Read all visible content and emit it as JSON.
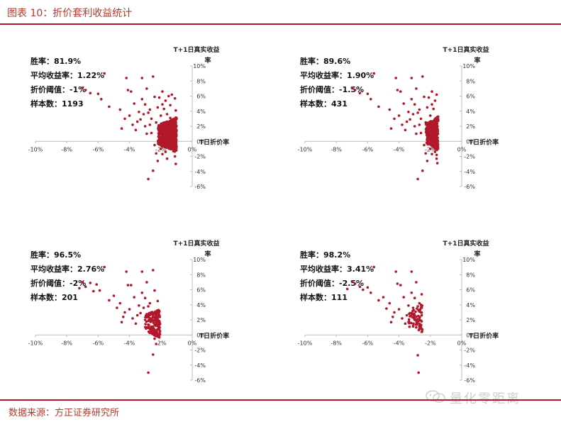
{
  "header": {
    "title": "图表 10：折价套利收益统计"
  },
  "footer": {
    "source": "数据来源：方正证券研究所"
  },
  "watermark": {
    "text": "量化零距离",
    "icon": "wechat-icon"
  },
  "colors": {
    "accent": "#b2182b",
    "point": "#b2182b",
    "axis": "#bbbbbb",
    "text": "#222222"
  },
  "chart_data": [
    {
      "type": "scatter",
      "xlabel": "T日折价率",
      "ylabel": "T+1日真实收益率",
      "x_ticks": [
        "-10%",
        "-8%",
        "-6%",
        "-4%",
        "-2%",
        "0%"
      ],
      "y_ticks": [
        "10%",
        "8%",
        "6%",
        "4%",
        "2%",
        "0%",
        "-2%",
        "-4%",
        "-6%"
      ],
      "xlim": [
        -10,
        0
      ],
      "ylim": [
        -6,
        10
      ],
      "stats": {
        "win_rate": "胜率：81.9%",
        "avg_return": "平均收益率：1.22%",
        "threshold": "折价阈值：-1%",
        "samples": "样本数：1193"
      },
      "threshold": -1,
      "points": [
        [
          -7.0,
          7.1
        ],
        [
          -6.8,
          6.8
        ],
        [
          -6.5,
          6.4
        ],
        [
          -5.6,
          9.0
        ],
        [
          -6.0,
          6.3
        ],
        [
          -5.8,
          5.6
        ],
        [
          -5.3,
          4.6
        ],
        [
          -4.2,
          8.4
        ],
        [
          -4.1,
          6.8
        ],
        [
          -3.9,
          6.6
        ],
        [
          -3.7,
          5.0
        ],
        [
          -4.6,
          4.2
        ],
        [
          -4.3,
          3.0
        ],
        [
          -3.5,
          2.6
        ],
        [
          -3.2,
          8.4
        ],
        [
          -3.2,
          5.6
        ],
        [
          -3.0,
          4.9
        ],
        [
          -2.9,
          7.0
        ],
        [
          -2.5,
          8.6
        ],
        [
          -2.4,
          5.9
        ],
        [
          -2.8,
          3.8
        ],
        [
          -4.5,
          1.7
        ],
        [
          -3.6,
          1.5
        ],
        [
          -3.0,
          2.0
        ],
        [
          -2.7,
          2.2
        ],
        [
          -2.6,
          1.1
        ],
        [
          -2.4,
          -0.5
        ],
        [
          -2.3,
          -1.6
        ],
        [
          -2.2,
          -2.6
        ],
        [
          -2.5,
          -3.9
        ],
        [
          -2.8,
          -5.0
        ],
        [
          -2.0,
          -1.0
        ],
        [
          -1.9,
          -1.7
        ],
        [
          -1.7,
          -1.4
        ],
        [
          -1.6,
          -2.3
        ],
        [
          -1.5,
          -0.2
        ],
        [
          -1.8,
          4.3
        ],
        [
          -1.7,
          5.4
        ],
        [
          -1.5,
          6.0
        ],
        [
          -1.4,
          4.8
        ],
        [
          -1.3,
          6.2
        ],
        [
          -1.2,
          2.8
        ],
        [
          -1.1,
          -2.0
        ],
        [
          -1.05,
          -3.0
        ],
        [
          -1.2,
          -1.3
        ],
        [
          -1.8,
          2.5
        ],
        [
          -2.0,
          3.4
        ],
        [
          -2.2,
          4.5
        ],
        [
          -1.4,
          3.1
        ],
        [
          -1.1,
          5.7
        ],
        [
          -2.6,
          3.0
        ],
        [
          -3.3,
          2.9
        ],
        [
          -3.1,
          3.6
        ],
        [
          -2.7,
          4.2
        ],
        [
          -1.9,
          4.9
        ],
        [
          -1.6,
          1.9
        ],
        [
          -1.4,
          0.6
        ],
        [
          -1.3,
          -0.8
        ],
        [
          -1.2,
          0.4
        ],
        [
          -1.1,
          1.6
        ],
        [
          -1.6,
          3.6
        ],
        [
          -2.1,
          1.2
        ],
        [
          -2.3,
          2.5
        ],
        [
          -2.9,
          1.0
        ],
        [
          -4.0,
          3.4
        ],
        [
          -3.8,
          2.2
        ],
        [
          -3.4,
          3.9
        ],
        [
          -2.1,
          5.8
        ],
        [
          -1.9,
          6.6
        ],
        [
          -1.05,
          4.1
        ]
      ],
      "dense_clusters": [
        {
          "x": [
            -2.2,
            -1.0
          ],
          "y": [
            -1.5,
            3.2
          ],
          "count": 900,
          "seed": 11
        }
      ]
    },
    {
      "type": "scatter",
      "xlabel": "T日折价率",
      "ylabel": "T+1日真实收益率",
      "x_ticks": [
        "-10%",
        "-8%",
        "-6%",
        "-4%",
        "-2%",
        "0%"
      ],
      "y_ticks": [
        "10%",
        "8%",
        "6%",
        "4%",
        "2%",
        "0%",
        "-2%",
        "-4%",
        "-6%"
      ],
      "xlim": [
        -10,
        0
      ],
      "ylim": [
        -6,
        10
      ],
      "stats": {
        "win_rate": "胜率：89.6%",
        "avg_return": "平均收益率：1.90%",
        "threshold": "折价阈值：-1.5%",
        "samples": "样本数：431"
      },
      "threshold": -1.5,
      "points": [
        [
          -7.0,
          7.1
        ],
        [
          -6.8,
          6.8
        ],
        [
          -6.5,
          6.4
        ],
        [
          -5.6,
          9.0
        ],
        [
          -6.0,
          6.3
        ],
        [
          -5.8,
          5.6
        ],
        [
          -5.3,
          4.6
        ],
        [
          -4.2,
          8.4
        ],
        [
          -4.1,
          6.8
        ],
        [
          -3.9,
          6.6
        ],
        [
          -3.7,
          5.0
        ],
        [
          -4.6,
          4.2
        ],
        [
          -4.3,
          3.0
        ],
        [
          -3.5,
          2.6
        ],
        [
          -3.2,
          8.4
        ],
        [
          -3.2,
          5.6
        ],
        [
          -3.0,
          4.9
        ],
        [
          -2.9,
          7.0
        ],
        [
          -2.5,
          8.6
        ],
        [
          -2.4,
          5.9
        ],
        [
          -2.8,
          3.8
        ],
        [
          -4.5,
          1.7
        ],
        [
          -3.6,
          1.5
        ],
        [
          -3.0,
          2.0
        ],
        [
          -2.7,
          2.2
        ],
        [
          -2.6,
          1.1
        ],
        [
          -2.4,
          -0.5
        ],
        [
          -2.3,
          -1.6
        ],
        [
          -2.2,
          -2.6
        ],
        [
          -2.5,
          -3.9
        ],
        [
          -2.8,
          -5.0
        ],
        [
          -2.0,
          -1.0
        ],
        [
          -1.9,
          -1.7
        ],
        [
          -1.7,
          -1.4
        ],
        [
          -1.6,
          -2.3
        ],
        [
          -1.8,
          4.3
        ],
        [
          -1.7,
          5.4
        ],
        [
          -1.6,
          6.2
        ],
        [
          -2.0,
          3.4
        ],
        [
          -2.2,
          4.5
        ],
        [
          -2.6,
          3.0
        ],
        [
          -3.3,
          2.9
        ],
        [
          -3.1,
          3.6
        ],
        [
          -2.7,
          4.2
        ],
        [
          -1.9,
          4.9
        ],
        [
          -1.6,
          1.9
        ],
        [
          -2.1,
          1.2
        ],
        [
          -2.3,
          2.5
        ],
        [
          -2.9,
          1.0
        ],
        [
          -4.0,
          3.4
        ],
        [
          -3.8,
          2.2
        ],
        [
          -3.4,
          3.9
        ],
        [
          -2.1,
          5.8
        ],
        [
          -1.9,
          6.6
        ],
        [
          -1.55,
          -2.9
        ],
        [
          -1.55,
          -0.7
        ],
        [
          -1.6,
          -1.8
        ]
      ],
      "dense_clusters": [
        {
          "x": [
            -2.3,
            -1.5
          ],
          "y": [
            -1.3,
            3.4
          ],
          "count": 330,
          "seed": 23
        }
      ]
    },
    {
      "type": "scatter",
      "xlabel": "T日折价率",
      "ylabel": "T+1日真实收益率",
      "x_ticks": [
        "-10%",
        "-8%",
        "-6%",
        "-4%",
        "-2%",
        "0%"
      ],
      "y_ticks": [
        "10%",
        "8%",
        "6%",
        "4%",
        "2%",
        "0%",
        "-2%",
        "-4%",
        "-6%"
      ],
      "xlim": [
        -10,
        0
      ],
      "ylim": [
        -6,
        10
      ],
      "stats": {
        "win_rate": "胜率：96.5%",
        "avg_return": "平均收益率：2.76%",
        "threshold": "折价阈值：-2%",
        "samples": "样本数：201"
      },
      "threshold": -2,
      "points": [
        [
          -7.0,
          7.0
        ],
        [
          -6.8,
          6.4
        ],
        [
          -6.5,
          6.9
        ],
        [
          -5.6,
          9.0
        ],
        [
          -6.1,
          6.7
        ],
        [
          -5.9,
          5.9
        ],
        [
          -5.3,
          4.6
        ],
        [
          -4.2,
          8.4
        ],
        [
          -4.1,
          6.6
        ],
        [
          -3.9,
          6.6
        ],
        [
          -3.7,
          5.0
        ],
        [
          -4.6,
          4.2
        ],
        [
          -4.3,
          3.0
        ],
        [
          -3.5,
          2.6
        ],
        [
          -3.2,
          8.4
        ],
        [
          -3.2,
          5.6
        ],
        [
          -3.0,
          4.9
        ],
        [
          -2.9,
          7.0
        ],
        [
          -2.5,
          8.6
        ],
        [
          -2.4,
          5.9
        ],
        [
          -2.8,
          3.8
        ],
        [
          -4.5,
          1.7
        ],
        [
          -3.6,
          1.5
        ],
        [
          -3.0,
          2.0
        ],
        [
          -2.7,
          2.2
        ],
        [
          -2.6,
          1.1
        ],
        [
          -2.4,
          -0.5
        ],
        [
          -2.3,
          -1.2
        ],
        [
          -2.5,
          -2.6
        ],
        [
          -2.8,
          -5.0
        ],
        [
          -2.6,
          3.0
        ],
        [
          -3.3,
          2.9
        ],
        [
          -3.1,
          3.6
        ],
        [
          -2.7,
          4.2
        ],
        [
          -2.3,
          2.5
        ],
        [
          -2.9,
          1.0
        ],
        [
          -4.0,
          3.4
        ],
        [
          -3.8,
          2.2
        ],
        [
          -3.4,
          3.9
        ],
        [
          -2.2,
          4.5
        ],
        [
          -2.15,
          3.3
        ],
        [
          -2.1,
          1.6
        ],
        [
          -2.05,
          0.5
        ],
        [
          -2.2,
          -0.2
        ],
        [
          -7.2,
          6.2
        ],
        [
          -6.3,
          5.8
        ],
        [
          -5.0,
          5.2
        ],
        [
          -4.8,
          3.6
        ],
        [
          -4.4,
          2.4
        ]
      ],
      "dense_clusters": [
        {
          "x": [
            -3.0,
            -2.05
          ],
          "y": [
            -0.5,
            3.6
          ],
          "count": 150,
          "seed": 37
        }
      ]
    },
    {
      "type": "scatter",
      "xlabel": "T日折价率",
      "ylabel": "T+1日真实收益率",
      "x_ticks": [
        "-10%",
        "-8%",
        "-6%",
        "-4%",
        "-2%",
        "0%"
      ],
      "y_ticks": [
        "10%",
        "8%",
        "6%",
        "4%",
        "2%",
        "0%",
        "-2%",
        "-4%",
        "-6%"
      ],
      "xlim": [
        -10,
        0
      ],
      "ylim": [
        -6,
        10
      ],
      "stats": {
        "win_rate": "胜率：98.2%",
        "avg_return": "平均收益率：3.41%",
        "threshold": "折价阈值：-2.5%",
        "samples": "样本数：111"
      },
      "threshold": -2.5,
      "points": [
        [
          -7.0,
          7.1
        ],
        [
          -6.8,
          6.8
        ],
        [
          -6.5,
          6.4
        ],
        [
          -5.6,
          9.0
        ],
        [
          -6.0,
          6.3
        ],
        [
          -5.8,
          5.6
        ],
        [
          -5.3,
          4.6
        ],
        [
          -4.2,
          8.4
        ],
        [
          -4.1,
          6.8
        ],
        [
          -3.9,
          6.6
        ],
        [
          -3.7,
          5.0
        ],
        [
          -4.6,
          4.2
        ],
        [
          -4.3,
          3.0
        ],
        [
          -3.5,
          2.6
        ],
        [
          -3.2,
          8.4
        ],
        [
          -3.2,
          5.6
        ],
        [
          -3.0,
          4.9
        ],
        [
          -2.9,
          7.0
        ],
        [
          -2.7,
          2.2
        ],
        [
          -2.6,
          1.1
        ],
        [
          -2.8,
          3.8
        ],
        [
          -4.5,
          1.7
        ],
        [
          -3.6,
          1.5
        ],
        [
          -3.0,
          2.0
        ],
        [
          -2.8,
          -2.7
        ],
        [
          -2.75,
          -5.0
        ],
        [
          -2.6,
          3.0
        ],
        [
          -3.3,
          2.9
        ],
        [
          -3.1,
          3.6
        ],
        [
          -2.7,
          4.2
        ],
        [
          -2.9,
          1.0
        ],
        [
          -4.0,
          3.4
        ],
        [
          -3.8,
          2.2
        ],
        [
          -3.4,
          3.9
        ],
        [
          -7.3,
          6.1
        ],
        [
          -6.3,
          6.0
        ],
        [
          -5.0,
          5.0
        ],
        [
          -4.8,
          3.5
        ],
        [
          -4.4,
          2.4
        ],
        [
          -2.55,
          5.4
        ],
        [
          -2.6,
          4.0
        ],
        [
          -2.55,
          2.6
        ],
        [
          -2.6,
          1.9
        ],
        [
          -2.55,
          0.8
        ]
      ],
      "dense_clusters": [
        {
          "x": [
            -3.4,
            -2.5
          ],
          "y": [
            0.3,
            4.0
          ],
          "count": 60,
          "seed": 53
        }
      ]
    }
  ]
}
